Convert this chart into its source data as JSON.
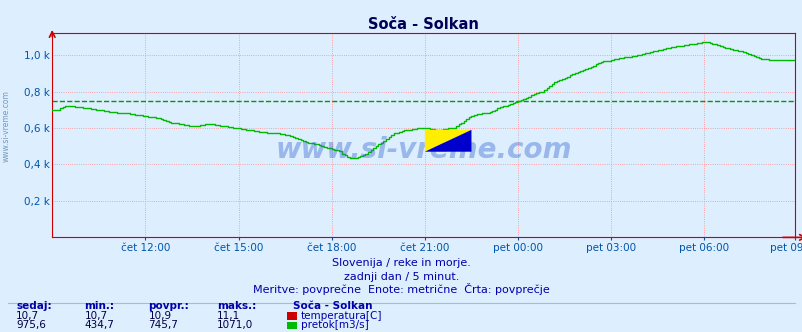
{
  "title": "Soča - Solkan",
  "bg_color": "#ddeeff",
  "plot_bg_color": "#ddeeff",
  "avg_line_color": "#009900",
  "avg_line_value": 745.7,
  "x_labels": [
    "čet 12:00",
    "čet 15:00",
    "čet 18:00",
    "čet 21:00",
    "pet 00:00",
    "pet 03:00",
    "pet 06:00",
    "pet 09:00"
  ],
  "x_tick_positions": [
    36,
    72,
    108,
    144,
    180,
    216,
    252,
    287
  ],
  "y_ticks": [
    200,
    400,
    600,
    800,
    1000
  ],
  "y_tick_labels": [
    "0,2 k",
    "0,4 k",
    "0,6 k",
    "0,8 k",
    "1,0 k"
  ],
  "ylim": [
    0,
    1120
  ],
  "n_points": 288,
  "flow_color": "#00bb00",
  "temp_color": "#cc0000",
  "grid_color": "#ff8888",
  "axis_color": "#cc0000",
  "tick_color": "#0055aa",
  "title_color": "#000055",
  "subtitle_color": "#0000aa",
  "stats_label_color": "#0000aa",
  "stats_value_color": "#000044",
  "watermark": "www.si-vreme.com",
  "watermark_color": "#3366cc",
  "left_watermark_color": "#7799bb",
  "subtitle1": "Slovenija / reke in morje.",
  "subtitle2": "zadnji dan / 5 minut.",
  "subtitle3": "Meritve: povprečne  Enote: metrične  Črta: povprečje",
  "legend_title": "Soča - Solkan",
  "legend_items": [
    {
      "label": "temperatura[C]",
      "color": "#cc0000"
    },
    {
      "label": "pretok[m3/s]",
      "color": "#00bb00"
    }
  ],
  "stats_headers": [
    "sedaj:",
    "min.:",
    "povpr.:",
    "maks.:"
  ],
  "stats_temp": [
    10.7,
    10.7,
    10.9,
    11.1
  ],
  "stats_flow": [
    975.6,
    434.7,
    745.7,
    1071.0
  ],
  "flow_data": [
    700,
    700,
    700,
    710,
    715,
    718,
    720,
    720,
    718,
    716,
    715,
    713,
    712,
    710,
    708,
    706,
    704,
    702,
    700,
    698,
    696,
    694,
    692,
    690,
    688,
    686,
    684,
    682,
    680,
    678,
    676,
    674,
    672,
    670,
    668,
    666,
    664,
    662,
    660,
    658,
    656,
    654,
    650,
    646,
    640,
    636,
    632,
    628,
    624,
    620,
    618,
    616,
    614,
    612,
    610,
    610,
    612,
    614,
    616,
    618,
    620,
    620,
    618,
    616,
    614,
    612,
    610,
    608,
    606,
    604,
    602,
    600,
    598,
    596,
    594,
    592,
    590,
    588,
    586,
    584,
    582,
    580,
    578,
    576,
    574,
    572,
    570,
    568,
    566,
    564,
    562,
    560,
    555,
    550,
    545,
    540,
    535,
    530,
    525,
    520,
    516,
    512,
    508,
    504,
    500,
    496,
    492,
    488,
    484,
    480,
    478,
    476,
    462,
    450,
    440,
    435,
    434,
    436,
    440,
    445,
    452,
    460,
    470,
    480,
    490,
    500,
    510,
    520,
    530,
    540,
    550,
    560,
    568,
    575,
    580,
    585,
    588,
    590,
    592,
    594,
    596,
    598,
    600,
    602,
    600,
    598,
    596,
    594,
    592,
    590,
    592,
    594,
    596,
    598,
    600,
    602,
    610,
    620,
    630,
    640,
    650,
    658,
    665,
    670,
    674,
    676,
    678,
    680,
    684,
    690,
    696,
    702,
    708,
    714,
    718,
    722,
    726,
    730,
    736,
    742,
    748,
    754,
    760,
    766,
    772,
    778,
    784,
    790,
    796,
    802,
    810,
    820,
    830,
    840,
    850,
    858,
    864,
    870,
    876,
    882,
    888,
    894,
    900,
    906,
    912,
    918,
    924,
    930,
    936,
    942,
    948,
    954,
    960,
    964,
    968,
    972,
    976,
    980,
    982,
    984,
    986,
    988,
    990,
    992,
    994,
    996,
    998,
    1000,
    1004,
    1008,
    1012,
    1016,
    1020,
    1024,
    1028,
    1032,
    1036,
    1040,
    1042,
    1044,
    1046,
    1048,
    1050,
    1052,
    1054,
    1056,
    1058,
    1060,
    1062,
    1064,
    1066,
    1068,
    1070,
    1068,
    1065,
    1062,
    1058,
    1054,
    1050,
    1046,
    1042,
    1038,
    1035,
    1032,
    1028,
    1025,
    1020,
    1015,
    1010,
    1005,
    1000,
    995,
    990,
    985,
    982,
    980,
    978,
    976
  ]
}
